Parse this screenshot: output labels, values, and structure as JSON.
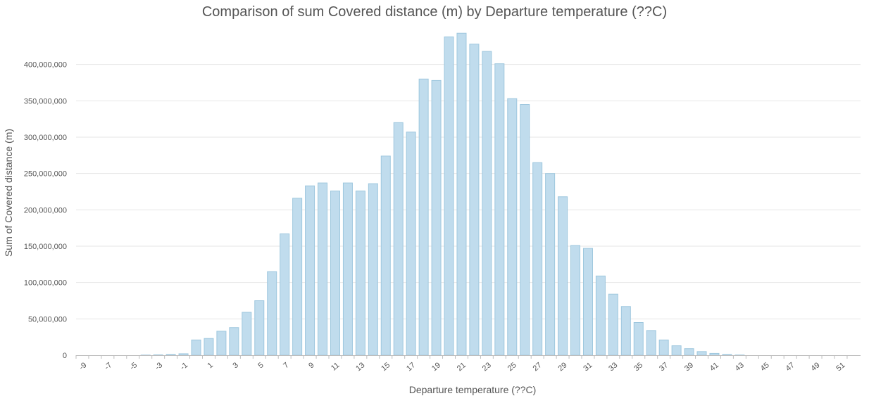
{
  "chart_data": {
    "type": "bar",
    "title": "Comparison of sum Covered distance (m) by Departure temperature (??C)",
    "xlabel": "Departure temperature (??C)",
    "ylabel": "Sum of Covered distance (m)",
    "ylim": [
      0,
      450000000
    ],
    "yticks": [
      0,
      50000000,
      100000000,
      150000000,
      200000000,
      250000000,
      300000000,
      350000000,
      400000000
    ],
    "ytick_labels": [
      "0",
      "50,000,000",
      "100,000,000",
      "150,000,000",
      "200,000,000",
      "250,000,000",
      "300,000,000",
      "350,000,000",
      "400,000,000"
    ],
    "categories": [
      -9,
      -8,
      -7,
      -6,
      -5,
      -4,
      -3,
      -2,
      -1,
      0,
      1,
      2,
      3,
      4,
      5,
      6,
      7,
      8,
      9,
      10,
      11,
      12,
      13,
      14,
      15,
      16,
      17,
      18,
      19,
      20,
      21,
      22,
      23,
      24,
      25,
      26,
      27,
      28,
      29,
      30,
      31,
      32,
      33,
      34,
      35,
      36,
      37,
      38,
      39,
      40,
      41,
      42,
      43,
      44,
      45,
      46,
      47,
      48,
      49,
      50,
      51,
      52
    ],
    "xtick_labels": [
      "-9",
      "-7",
      "-5",
      "-3",
      "-1",
      "1",
      "3",
      "5",
      "7",
      "9",
      "11",
      "13",
      "15",
      "17",
      "19",
      "21",
      "23",
      "25",
      "27",
      "29",
      "31",
      "33",
      "35",
      "37",
      "39",
      "41",
      "43",
      "45",
      "47",
      "49",
      "51"
    ],
    "values": [
      0,
      0,
      0,
      0,
      0,
      200000,
      500000,
      1000000,
      2000000,
      21000000,
      23000000,
      33000000,
      38000000,
      59000000,
      75000000,
      115000000,
      167000000,
      216000000,
      233000000,
      237000000,
      226000000,
      237000000,
      226000000,
      236000000,
      274000000,
      320000000,
      307000000,
      380000000,
      378000000,
      438000000,
      443000000,
      428000000,
      418000000,
      401000000,
      353000000,
      345000000,
      265000000,
      250000000,
      218000000,
      151000000,
      147000000,
      109000000,
      84000000,
      67000000,
      45000000,
      34000000,
      21000000,
      13000000,
      9000000,
      5000000,
      2500000,
      1000000,
      300000,
      0,
      0,
      0,
      0,
      0,
      0,
      0,
      0,
      0
    ],
    "grid": true,
    "legend": "none",
    "colors": {
      "bar_fill": "#c0dced",
      "bar_stroke": "#9ec7de",
      "grid": "#e6e6e6",
      "text": "#555555"
    }
  }
}
